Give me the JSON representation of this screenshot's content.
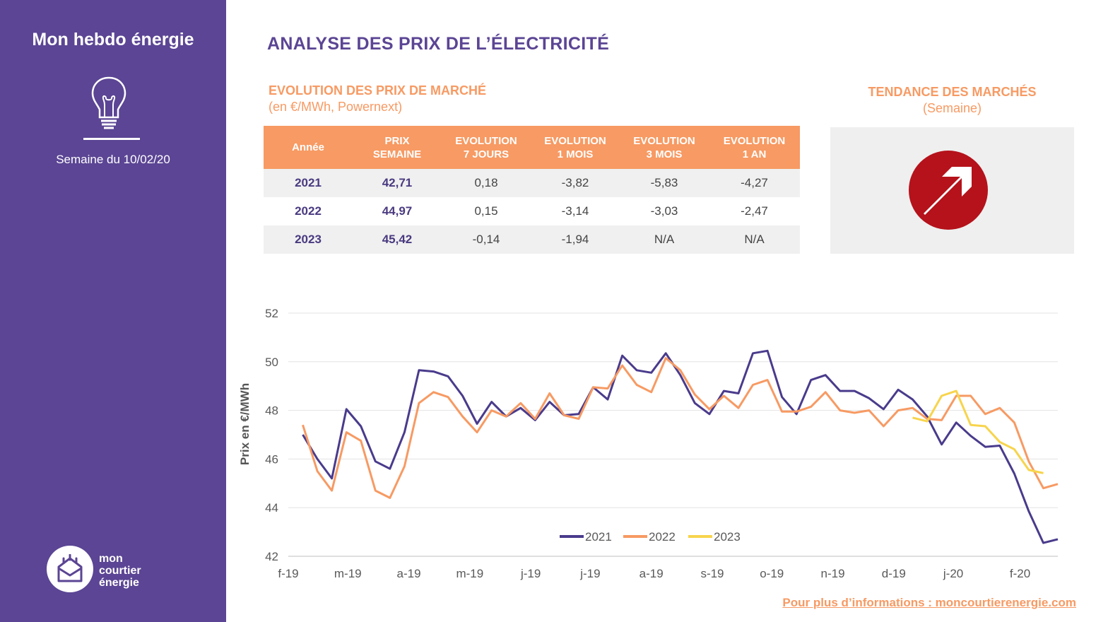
{
  "sidebar": {
    "title": "Mon hebdo énergie",
    "week_label": "Semaine du 10/02/20",
    "logo_lines": [
      "mon",
      "courtier",
      "énergie"
    ]
  },
  "header": {
    "title": "ANALYSE DES PRIX DE L’ÉLECTRICITÉ"
  },
  "market": {
    "title": "EVOLUTION DES PRIX DE MARCHÉ",
    "unit": "(en €/MWh, Powernext)",
    "columns": [
      [
        "Année"
      ],
      [
        "PRIX",
        "SEMAINE"
      ],
      [
        "EVOLUTION",
        "7 JOURS"
      ],
      [
        "EVOLUTION",
        "1 MOIS"
      ],
      [
        "EVOLUTION",
        "3 MOIS"
      ],
      [
        "EVOLUTION",
        "1 AN"
      ]
    ],
    "rows": [
      [
        "2021",
        "42,71",
        "0,18",
        "-3,82",
        "-5,83",
        "-4,27"
      ],
      [
        "2022",
        "44,97",
        "0,15",
        "-3,14",
        "-3,03",
        "-2,47"
      ],
      [
        "2023",
        "45,42",
        "-0,14",
        "-1,94",
        "N/A",
        "N/A"
      ]
    ]
  },
  "trend": {
    "title": "TENDANCE DES MARCHÉS",
    "subtitle": "(Semaine)",
    "direction": "up-right",
    "color": "#b5121b"
  },
  "footer": {
    "link_text": "Pour plus d’informations : moncourtierenergie.com"
  },
  "colors": {
    "sidebar": "#5b4594",
    "accent": "#f79a63",
    "series_2021": "#4a3b8c",
    "series_2022": "#f79a63",
    "series_2023": "#f7d44c"
  },
  "chart_data": {
    "type": "line",
    "ylabel": "Prix en €/MWh",
    "xlabel": "",
    "ylim": [
      42,
      52
    ],
    "yticks": [
      42,
      44,
      46,
      48,
      50,
      52
    ],
    "x_ticks": [
      "f-19",
      "m-19",
      "a-19",
      "m-19",
      "j-19",
      "j-19",
      "a-19",
      "s-19",
      "o-19",
      "n-19",
      "d-19",
      "j-20",
      "f-20"
    ],
    "grid": true,
    "legend_position": "bottom-center",
    "series": [
      {
        "name": "2021",
        "color": "#4a3b8c",
        "start_index": 1,
        "values": [
          47.0,
          46.0,
          45.2,
          48.05,
          47.35,
          45.9,
          45.6,
          47.1,
          49.65,
          49.6,
          49.4,
          48.6,
          47.45,
          48.35,
          47.75,
          48.1,
          47.6,
          48.35,
          47.8,
          47.85,
          48.95,
          48.45,
          50.25,
          49.65,
          49.55,
          50.35,
          49.45,
          48.3,
          47.85,
          48.8,
          48.7,
          50.35,
          50.45,
          48.55,
          47.85,
          49.25,
          49.45,
          48.8,
          48.8,
          48.5,
          48.05,
          48.85,
          48.45,
          47.75,
          46.6,
          47.5,
          46.95,
          46.5,
          46.55,
          45.4,
          43.85,
          42.55,
          42.7
        ]
      },
      {
        "name": "2022",
        "color": "#f79a63",
        "start_index": 1,
        "values": [
          47.4,
          45.5,
          44.7,
          47.1,
          46.75,
          44.7,
          44.4,
          45.7,
          48.3,
          48.75,
          48.55,
          47.75,
          47.1,
          48.0,
          47.75,
          48.3,
          47.65,
          48.7,
          47.8,
          47.65,
          48.95,
          48.9,
          49.85,
          49.05,
          48.75,
          50.15,
          49.65,
          48.65,
          48.05,
          48.6,
          48.1,
          49.05,
          49.25,
          47.95,
          47.95,
          48.15,
          48.75,
          48.0,
          47.9,
          48.0,
          47.35,
          48.0,
          48.1,
          47.65,
          47.6,
          48.6,
          48.6,
          47.85,
          48.1,
          47.5,
          45.9,
          44.8,
          44.97
        ]
      },
      {
        "name": "2023",
        "color": "#f7d44c",
        "start_index": 43,
        "values": [
          47.7,
          47.55,
          48.6,
          48.8,
          47.4,
          47.35,
          46.7,
          46.4,
          45.55,
          45.42
        ]
      }
    ]
  }
}
